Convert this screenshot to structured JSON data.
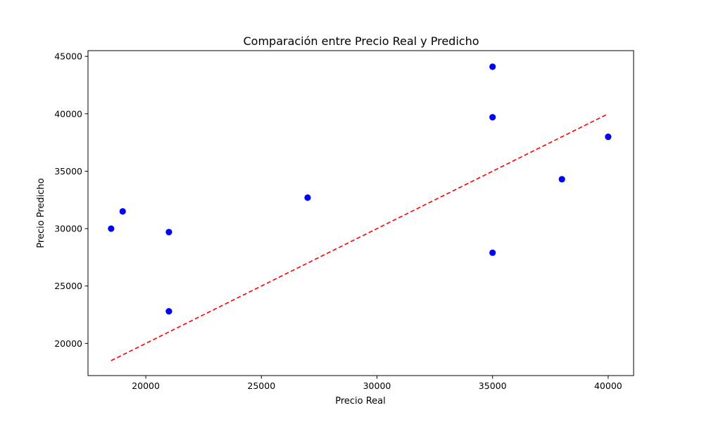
{
  "chart_data": {
    "type": "scatter",
    "title": "Comparación entre Precio Real y Predicho",
    "xlabel": "Precio Real",
    "ylabel": "Precio Predicho",
    "xlim": [
      17500,
      41100
    ],
    "ylim": [
      17200,
      45500
    ],
    "xticks": [
      20000,
      25000,
      30000,
      35000,
      40000
    ],
    "yticks": [
      20000,
      25000,
      30000,
      35000,
      40000,
      45000
    ],
    "grid": false,
    "points": [
      {
        "x": 18500,
        "y": 30000
      },
      {
        "x": 19000,
        "y": 31500
      },
      {
        "x": 21000,
        "y": 29700
      },
      {
        "x": 21000,
        "y": 22800
      },
      {
        "x": 27000,
        "y": 32700
      },
      {
        "x": 35000,
        "y": 44100
      },
      {
        "x": 35000,
        "y": 39700
      },
      {
        "x": 35000,
        "y": 27900
      },
      {
        "x": 38000,
        "y": 34300
      },
      {
        "x": 40000,
        "y": 38000
      }
    ],
    "point_color": "#0000ff",
    "reference_line": {
      "x": [
        18500,
        40000
      ],
      "y": [
        18500,
        40000
      ],
      "style": "dashed",
      "color": "#ff0000"
    }
  }
}
